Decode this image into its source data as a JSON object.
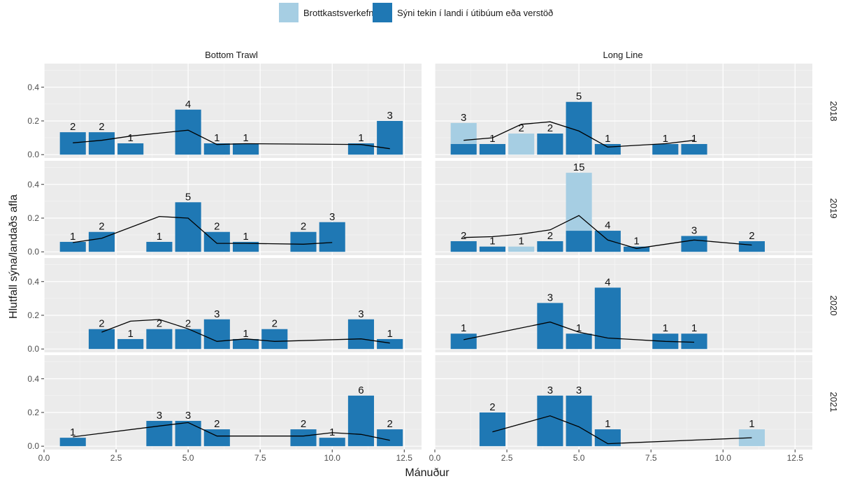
{
  "chart_data": {
    "type": "bar",
    "xlabel": "Mánuður",
    "ylabel": "Hlutfall sýna/landaðs afla",
    "xlim": [
      0,
      13.1
    ],
    "ylim": [
      -0.02,
      0.54
    ],
    "x_ticks": [
      "0.0",
      "2.5",
      "5.0",
      "7.5",
      "10.0",
      "12.5"
    ],
    "x_tick_values": [
      0,
      2.5,
      5,
      7.5,
      10,
      12.5
    ],
    "y_ticks": [
      "0.0",
      "0.2",
      "0.4"
    ],
    "y_tick_values": [
      0,
      0.2,
      0.4
    ],
    "grid": true,
    "legend_position": "top",
    "series": [
      {
        "name": "Brottkastsverkefni",
        "color": "#a6cee3"
      },
      {
        "name": "Sýni tekin í landi í útibúum eða verstöð",
        "color": "#1f78b4"
      }
    ],
    "columns": [
      "Bottom Trawl",
      "Long Line"
    ],
    "rows": [
      "2018",
      "2019",
      "2020",
      "2021"
    ],
    "panels": [
      {
        "gear": "Bottom Trawl",
        "year": "2018",
        "bars": [
          {
            "month": 1,
            "landed": 0.133,
            "discard": 0,
            "label": "2"
          },
          {
            "month": 2,
            "landed": 0.133,
            "discard": 0,
            "label": "2"
          },
          {
            "month": 3,
            "landed": 0.067,
            "discard": 0,
            "label": "1"
          },
          {
            "month": 5,
            "landed": 0.267,
            "discard": 0,
            "label": "4"
          },
          {
            "month": 6,
            "landed": 0.067,
            "discard": 0,
            "label": "1"
          },
          {
            "month": 7,
            "landed": 0.067,
            "discard": 0,
            "label": "1"
          },
          {
            "month": 11,
            "landed": 0.067,
            "discard": 0,
            "label": "1"
          },
          {
            "month": 12,
            "landed": 0.2,
            "discard": 0,
            "label": "3"
          }
        ],
        "line": [
          [
            1,
            0.07
          ],
          [
            2,
            0.085
          ],
          [
            3,
            0.11
          ],
          [
            5,
            0.145
          ],
          [
            6,
            0.06
          ],
          [
            7,
            0.065
          ],
          [
            11,
            0.06
          ],
          [
            12,
            0.035
          ]
        ]
      },
      {
        "gear": "Long Line",
        "year": "2018",
        "bars": [
          {
            "month": 1,
            "landed": 0.063,
            "discard": 0.125,
            "label": "3"
          },
          {
            "month": 2,
            "landed": 0.063,
            "discard": 0,
            "label": "1"
          },
          {
            "month": 3,
            "landed": 0,
            "discard": 0.125,
            "label": "2"
          },
          {
            "month": 4,
            "landed": 0.125,
            "discard": 0,
            "label": "2"
          },
          {
            "month": 5,
            "landed": 0.313,
            "discard": 0,
            "label": "5"
          },
          {
            "month": 6,
            "landed": 0.063,
            "discard": 0,
            "label": "1"
          },
          {
            "month": 8,
            "landed": 0.063,
            "discard": 0,
            "label": "1"
          },
          {
            "month": 9,
            "landed": 0.063,
            "discard": 0,
            "label": "1"
          }
        ],
        "line": [
          [
            1,
            0.085
          ],
          [
            2,
            0.1
          ],
          [
            3,
            0.18
          ],
          [
            4,
            0.195
          ],
          [
            5,
            0.14
          ],
          [
            6,
            0.045
          ],
          [
            8,
            0.065
          ],
          [
            9,
            0.085
          ]
        ]
      },
      {
        "gear": "Bottom Trawl",
        "year": "2019",
        "bars": [
          {
            "month": 1,
            "landed": 0.059,
            "discard": 0,
            "label": "1"
          },
          {
            "month": 2,
            "landed": 0.118,
            "discard": 0,
            "label": "2"
          },
          {
            "month": 4,
            "landed": 0.059,
            "discard": 0,
            "label": "1"
          },
          {
            "month": 5,
            "landed": 0.294,
            "discard": 0,
            "label": "5"
          },
          {
            "month": 6,
            "landed": 0.118,
            "discard": 0,
            "label": "2"
          },
          {
            "month": 7,
            "landed": 0.059,
            "discard": 0,
            "label": "1"
          },
          {
            "month": 9,
            "landed": 0.118,
            "discard": 0,
            "label": "2"
          },
          {
            "month": 10,
            "landed": 0.176,
            "discard": 0,
            "label": "3"
          }
        ],
        "line": [
          [
            1,
            0.055
          ],
          [
            2,
            0.08
          ],
          [
            4,
            0.21
          ],
          [
            5,
            0.2
          ],
          [
            6,
            0.05
          ],
          [
            7,
            0.05
          ],
          [
            9,
            0.045
          ],
          [
            10,
            0.055
          ]
        ]
      },
      {
        "gear": "Long Line",
        "year": "2019",
        "bars": [
          {
            "month": 1,
            "landed": 0.063,
            "discard": 0,
            "label": "2"
          },
          {
            "month": 2,
            "landed": 0.031,
            "discard": 0,
            "label": "1"
          },
          {
            "month": 3,
            "landed": 0,
            "discard": 0.031,
            "label": "1"
          },
          {
            "month": 4,
            "landed": 0.063,
            "discard": 0,
            "label": "2"
          },
          {
            "month": 5,
            "landed": 0.125,
            "discard": 0.344,
            "label": "15"
          },
          {
            "month": 6,
            "landed": 0.125,
            "discard": 0,
            "label": "4"
          },
          {
            "month": 7,
            "landed": 0.031,
            "discard": 0,
            "label": "1"
          },
          {
            "month": 9,
            "landed": 0.094,
            "discard": 0,
            "label": "3"
          },
          {
            "month": 11,
            "landed": 0.063,
            "discard": 0,
            "label": "2"
          }
        ],
        "line": [
          [
            1,
            0.085
          ],
          [
            2,
            0.09
          ],
          [
            3,
            0.105
          ],
          [
            4,
            0.13
          ],
          [
            5,
            0.215
          ],
          [
            6,
            0.07
          ],
          [
            7,
            0.02
          ],
          [
            9,
            0.07
          ],
          [
            11,
            0.04
          ]
        ]
      },
      {
        "gear": "Bottom Trawl",
        "year": "2020",
        "bars": [
          {
            "month": 2,
            "landed": 0.118,
            "discard": 0,
            "label": "2"
          },
          {
            "month": 3,
            "landed": 0.059,
            "discard": 0,
            "label": "1"
          },
          {
            "month": 4,
            "landed": 0.118,
            "discard": 0,
            "label": "2"
          },
          {
            "month": 5,
            "landed": 0.118,
            "discard": 0,
            "label": "2"
          },
          {
            "month": 6,
            "landed": 0.176,
            "discard": 0,
            "label": "3"
          },
          {
            "month": 7,
            "landed": 0.059,
            "discard": 0,
            "label": "1"
          },
          {
            "month": 8,
            "landed": 0.118,
            "discard": 0,
            "label": "2"
          },
          {
            "month": 11,
            "landed": 0.176,
            "discard": 0,
            "label": "3"
          },
          {
            "month": 12,
            "landed": 0.059,
            "discard": 0,
            "label": "1"
          }
        ],
        "line": [
          [
            2,
            0.1
          ],
          [
            3,
            0.165
          ],
          [
            4,
            0.175
          ],
          [
            5,
            0.12
          ],
          [
            6,
            0.045
          ],
          [
            7,
            0.06
          ],
          [
            8,
            0.045
          ],
          [
            11,
            0.06
          ],
          [
            12,
            0.035
          ]
        ]
      },
      {
        "gear": "Long Line",
        "year": "2020",
        "bars": [
          {
            "month": 1,
            "landed": 0.091,
            "discard": 0,
            "label": "1"
          },
          {
            "month": 4,
            "landed": 0.273,
            "discard": 0,
            "label": "3"
          },
          {
            "month": 5,
            "landed": 0.091,
            "discard": 0,
            "label": "1"
          },
          {
            "month": 6,
            "landed": 0.364,
            "discard": 0,
            "label": "4"
          },
          {
            "month": 8,
            "landed": 0.091,
            "discard": 0,
            "label": "1"
          },
          {
            "month": 9,
            "landed": 0.091,
            "discard": 0,
            "label": "1"
          }
        ],
        "line": [
          [
            1,
            0.055
          ],
          [
            4,
            0.16
          ],
          [
            5,
            0.1
          ],
          [
            6,
            0.065
          ],
          [
            8,
            0.045
          ],
          [
            9,
            0.04
          ]
        ]
      },
      {
        "gear": "Bottom Trawl",
        "year": "2021",
        "bars": [
          {
            "month": 1,
            "landed": 0.05,
            "discard": 0,
            "label": "1"
          },
          {
            "month": 4,
            "landed": 0.15,
            "discard": 0,
            "label": "3"
          },
          {
            "month": 5,
            "landed": 0.15,
            "discard": 0,
            "label": "3"
          },
          {
            "month": 6,
            "landed": 0.1,
            "discard": 0,
            "label": "2"
          },
          {
            "month": 9,
            "landed": 0.1,
            "discard": 0,
            "label": "2"
          },
          {
            "month": 10,
            "landed": 0.05,
            "discard": 0,
            "label": "1"
          },
          {
            "month": 11,
            "landed": 0.3,
            "discard": 0,
            "label": "6"
          },
          {
            "month": 12,
            "landed": 0.1,
            "discard": 0,
            "label": "2"
          }
        ],
        "line": [
          [
            1,
            0.055
          ],
          [
            4,
            0.12
          ],
          [
            5,
            0.14
          ],
          [
            6,
            0.06
          ],
          [
            9,
            0.06
          ],
          [
            10,
            0.08
          ],
          [
            11,
            0.07
          ],
          [
            12,
            0.035
          ]
        ]
      },
      {
        "gear": "Long Line",
        "year": "2021",
        "bars": [
          {
            "month": 2,
            "landed": 0.2,
            "discard": 0,
            "label": "2"
          },
          {
            "month": 4,
            "landed": 0.3,
            "discard": 0,
            "label": "3"
          },
          {
            "month": 5,
            "landed": 0.3,
            "discard": 0,
            "label": "3"
          },
          {
            "month": 6,
            "landed": 0.1,
            "discard": 0,
            "label": "1"
          },
          {
            "month": 11,
            "landed": 0,
            "discard": 0.1,
            "label": "1"
          }
        ],
        "line": [
          [
            2,
            0.085
          ],
          [
            4,
            0.18
          ],
          [
            5,
            0.115
          ],
          [
            6,
            0.015
          ],
          [
            11,
            0.05
          ]
        ]
      }
    ]
  }
}
